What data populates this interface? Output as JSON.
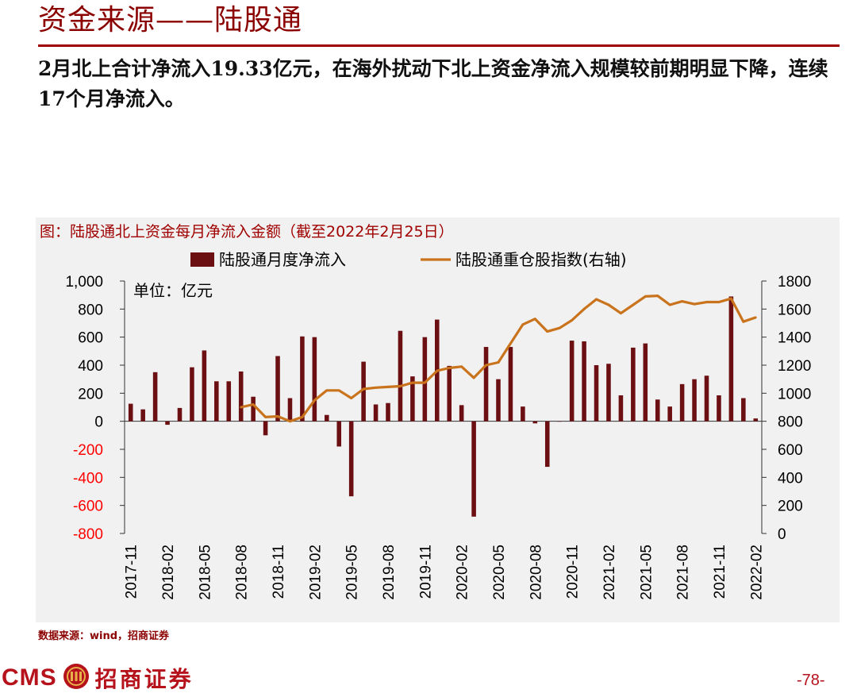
{
  "page": {
    "section_title": "资金来源——陆股通",
    "summary": "2月北上合计净流入19.33亿元，在海外扰动下北上资金净流入规模较前期明显下降，连续17个月净流入。",
    "source": "数据来源：wind，招商证券",
    "logo_text": "CMS",
    "logo_cn": "招商证券",
    "page_number": "-78-"
  },
  "chart_data": {
    "type": "bar",
    "title": "图：陆股通北上资金每月净流入金额（截至2022年2月25日）",
    "unit_label": "单位：亿元",
    "categories": [
      "2017-11",
      "2017-12",
      "2018-01",
      "2018-02",
      "2018-03",
      "2018-04",
      "2018-05",
      "2018-06",
      "2018-07",
      "2018-08",
      "2018-09",
      "2018-10",
      "2018-11",
      "2018-12",
      "2019-01",
      "2019-02",
      "2019-03",
      "2019-04",
      "2019-05",
      "2019-06",
      "2019-07",
      "2019-08",
      "2019-09",
      "2019-10",
      "2019-11",
      "2019-12",
      "2020-01",
      "2020-02",
      "2020-03",
      "2020-04",
      "2020-05",
      "2020-06",
      "2020-07",
      "2020-08",
      "2020-09",
      "2020-10",
      "2020-11",
      "2020-12",
      "2021-01",
      "2021-02",
      "2021-03",
      "2021-04",
      "2021-05",
      "2021-06",
      "2021-07",
      "2021-08",
      "2021-09",
      "2021-10",
      "2021-11",
      "2021-12",
      "2022-01",
      "2022-02"
    ],
    "x_tick_labels": [
      "2017-11",
      "2018-02",
      "2018-05",
      "2018-08",
      "2018-11",
      "2019-02",
      "2019-05",
      "2019-08",
      "2019-11",
      "2020-02",
      "2020-05",
      "2020-08",
      "2020-11",
      "2021-02",
      "2021-05",
      "2021-08",
      "2021-11",
      "2022-02"
    ],
    "series": [
      {
        "name": "陆股通月度净流入",
        "axis": "left",
        "type": "bar",
        "color": "#6b0f12",
        "values": [
          125,
          85,
          350,
          -25,
          95,
          385,
          505,
          285,
          285,
          355,
          175,
          -100,
          465,
          165,
          605,
          600,
          45,
          -180,
          -535,
          425,
          120,
          130,
          645,
          320,
          600,
          725,
          395,
          115,
          -680,
          530,
          300,
          530,
          105,
          -15,
          -325,
          0,
          575,
          570,
          400,
          410,
          185,
          525,
          555,
          155,
          105,
          265,
          300,
          325,
          185,
          890,
          165,
          20
        ]
      },
      {
        "name": "陆股通重仓股指数(右轴)",
        "axis": "right",
        "type": "line",
        "color": "#c9731c",
        "values": [
          null,
          null,
          null,
          null,
          null,
          null,
          null,
          null,
          null,
          900,
          920,
          830,
          835,
          800,
          830,
          950,
          1020,
          1020,
          965,
          1030,
          1040,
          1045,
          1050,
          1075,
          1075,
          1160,
          1180,
          1190,
          1110,
          1200,
          1220,
          1355,
          1490,
          1530,
          1440,
          1465,
          1520,
          1600,
          1670,
          1630,
          1570,
          1630,
          1690,
          1695,
          1630,
          1655,
          1635,
          1650,
          1650,
          1675,
          1510,
          1540
        ]
      }
    ],
    "y_left": {
      "min": -800,
      "max": 1000,
      "ticks": [
        1000,
        800,
        600,
        400,
        200,
        0,
        -200,
        -400,
        -600,
        -800
      ],
      "tick_labels": [
        "1,000",
        "800",
        "600",
        "400",
        "200",
        "0",
        "-200",
        "-400",
        "-600",
        "-800"
      ],
      "negative_color": "#ff0000"
    },
    "y_right": {
      "min": 0,
      "max": 1800,
      "ticks": [
        1800,
        1600,
        1400,
        1200,
        1000,
        800,
        600,
        400,
        200,
        0
      ],
      "tick_labels": [
        "1800",
        "1600",
        "1400",
        "1200",
        "1000",
        "800",
        "600",
        "400",
        "200",
        "0"
      ]
    },
    "legend_placement": "top-center",
    "grid": false
  }
}
